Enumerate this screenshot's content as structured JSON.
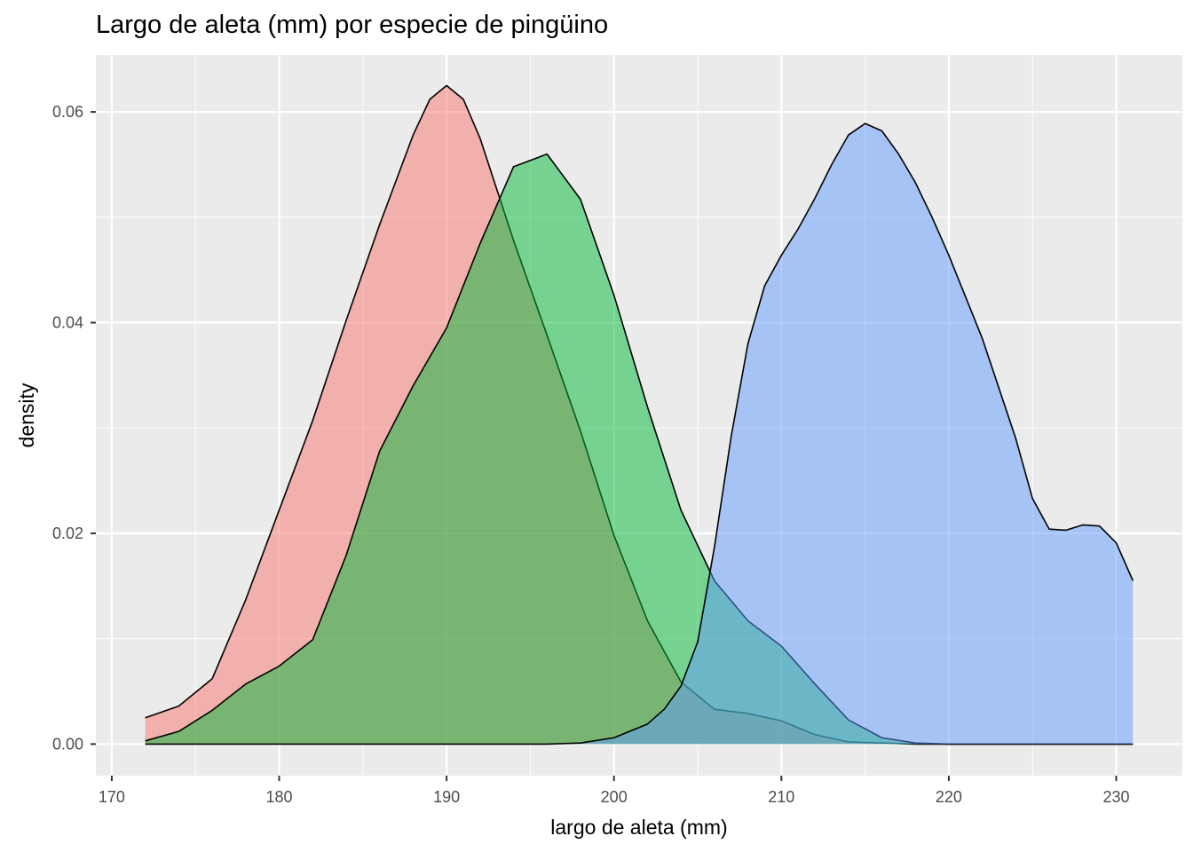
{
  "chart_data": {
    "type": "area",
    "title": "Largo de aleta (mm) por especie de pingüino",
    "xlabel": "largo de aleta (mm)",
    "ylabel": "density",
    "xlim": [
      169.05,
      233.95
    ],
    "ylim": [
      -0.003,
      0.0654
    ],
    "xticks": [
      170,
      180,
      190,
      200,
      210,
      220,
      230
    ],
    "xtick_labels": [
      "170",
      "180",
      "190",
      "200",
      "210",
      "220",
      "230"
    ],
    "yticks": [
      0.0,
      0.02,
      0.04,
      0.06
    ],
    "ytick_labels": [
      "0.00",
      "0.02",
      "0.04",
      "0.06"
    ],
    "grid": true,
    "legend": "none",
    "background": "#ebebeb",
    "series": [
      {
        "color": "#F8766D",
        "x": [
          172,
          174,
          176,
          178,
          180,
          182,
          184,
          186,
          188,
          189,
          190,
          191,
          192,
          194,
          196,
          198,
          200,
          202,
          204,
          206,
          208,
          210,
          212,
          214,
          216,
          218,
          220,
          224,
          228,
          231
        ],
        "y": [
          0.0025,
          0.0036,
          0.0062,
          0.0137,
          0.0222,
          0.0307,
          0.0402,
          0.0493,
          0.0578,
          0.0612,
          0.0625,
          0.0612,
          0.0575,
          0.0478,
          0.0388,
          0.0297,
          0.0198,
          0.0117,
          0.0059,
          0.0033,
          0.0029,
          0.0022,
          0.0009,
          0.0002,
          0.0001,
          0.0,
          0.0,
          0.0,
          0.0,
          0.0
        ]
      },
      {
        "color": "#00BA38",
        "x": [
          172,
          174,
          176,
          178,
          180,
          182,
          184,
          186,
          188,
          190,
          192,
          194,
          196,
          198,
          200,
          202,
          204,
          206,
          208,
          210,
          212,
          214,
          216,
          218,
          220,
          224,
          228,
          231
        ],
        "y": [
          0.0003,
          0.0012,
          0.0032,
          0.0057,
          0.0074,
          0.0099,
          0.0179,
          0.0278,
          0.034,
          0.0395,
          0.0475,
          0.0548,
          0.056,
          0.0517,
          0.0426,
          0.032,
          0.0222,
          0.0155,
          0.0117,
          0.0093,
          0.0057,
          0.0023,
          0.0006,
          0.0001,
          0.0,
          0.0,
          0.0,
          0.0
        ]
      },
      {
        "color": "#619CFF",
        "x": [
          172,
          180,
          190,
          196,
          198,
          200,
          202,
          203,
          204,
          205,
          206,
          207,
          208,
          209,
          210,
          211,
          212,
          213,
          214,
          215,
          216,
          217,
          218,
          219,
          220,
          222,
          224,
          225,
          226,
          227,
          228,
          229,
          230,
          231
        ],
        "y": [
          0.0,
          0.0,
          0.0,
          0.0,
          0.0001,
          0.0006,
          0.0019,
          0.0033,
          0.0055,
          0.0097,
          0.0187,
          0.0292,
          0.038,
          0.0435,
          0.0464,
          0.0489,
          0.0518,
          0.055,
          0.0578,
          0.0589,
          0.0582,
          0.056,
          0.0533,
          0.05,
          0.0464,
          0.0385,
          0.029,
          0.0233,
          0.0204,
          0.0203,
          0.0208,
          0.0207,
          0.0191,
          0.0155
        ]
      }
    ]
  }
}
